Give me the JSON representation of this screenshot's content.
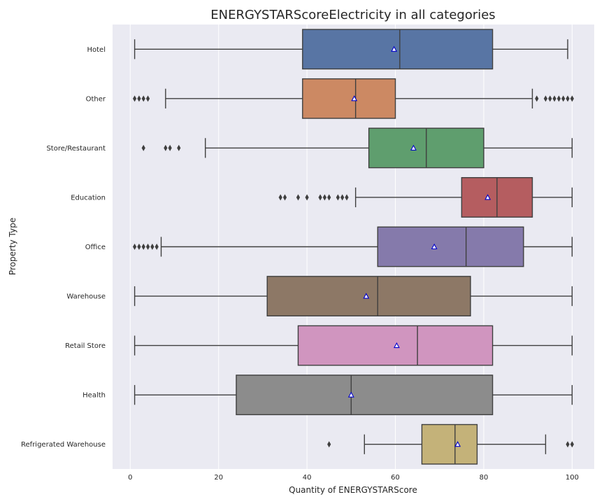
{
  "chart_data": {
    "type": "box",
    "title": "ENERGYSTARScoreElectricity in all categories",
    "xlabel": "Quantity of ENERGYSTARScore",
    "ylabel": "Property Type",
    "xlim": [
      -4,
      105
    ],
    "xticks": [
      0,
      20,
      40,
      60,
      80,
      100
    ],
    "grid": true,
    "orientation": "horizontal",
    "colors": {
      "background": "#EAEAF2",
      "grid": "#FFFFFF",
      "line": "#3F3F3F",
      "mean_face": "#FFFFFF",
      "mean_edge": "#0000CC"
    },
    "categories": [
      {
        "name": "Hotel",
        "color": "#5875A4",
        "whisker_low": 1,
        "q1": 39,
        "median": 61,
        "q3": 82,
        "whisker_high": 99,
        "mean": 59.7,
        "outliers": []
      },
      {
        "name": "Other",
        "color": "#CC8963",
        "whisker_low": 8,
        "q1": 39,
        "median": 51,
        "q3": 60,
        "whisker_high": 91,
        "mean": 50.7,
        "outliers": [
          1,
          2,
          3,
          4,
          92,
          94,
          95,
          96,
          97,
          98,
          99,
          100
        ]
      },
      {
        "name": "Store/Restaurant",
        "color": "#5F9E6E",
        "whisker_low": 17,
        "q1": 54,
        "median": 67,
        "q3": 80,
        "whisker_high": 100,
        "mean": 64.1,
        "outliers": [
          3,
          8,
          9,
          11
        ]
      },
      {
        "name": "Education",
        "color": "#B55D60",
        "whisker_low": 51,
        "q1": 75,
        "median": 83,
        "q3": 91,
        "whisker_high": 100,
        "mean": 80.9,
        "outliers": [
          34,
          35,
          38,
          40,
          43,
          44,
          45,
          47,
          48,
          49
        ]
      },
      {
        "name": "Office",
        "color": "#857AAB",
        "whisker_low": 7,
        "q1": 56,
        "median": 76,
        "q3": 89,
        "whisker_high": 100,
        "mean": 68.8,
        "outliers": [
          1,
          2,
          3,
          4,
          5,
          6
        ]
      },
      {
        "name": "Warehouse",
        "color": "#8D7866",
        "whisker_low": 1,
        "q1": 31,
        "median": 56,
        "q3": 77,
        "whisker_high": 100,
        "mean": 53.4,
        "outliers": []
      },
      {
        "name": "Retail Store",
        "color": "#D095BF",
        "whisker_low": 1,
        "q1": 38,
        "median": 65,
        "q3": 82,
        "whisker_high": 100,
        "mean": 60.3,
        "outliers": []
      },
      {
        "name": "Health",
        "color": "#8C8C8C",
        "whisker_low": 1,
        "q1": 24,
        "median": 50,
        "q3": 82,
        "whisker_high": 100,
        "mean": 50,
        "outliers": []
      },
      {
        "name": "Refrigerated Warehouse",
        "color": "#C4B279",
        "whisker_low": 53,
        "q1": 66,
        "median": 73.5,
        "q3": 78.5,
        "whisker_high": 94,
        "mean": 74.1,
        "outliers": [
          45,
          99,
          100
        ]
      }
    ]
  }
}
